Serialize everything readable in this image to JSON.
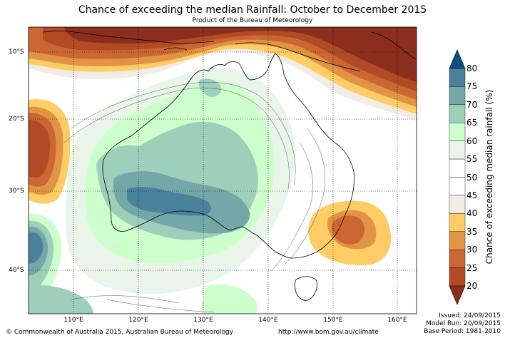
{
  "title": "Chance of exceeding the median Rainfall: October to December 2015",
  "subtitle": "Product of the Bureau of Meteorology",
  "lat_labels": [
    "10°S",
    "20°S",
    "30°S",
    "40°S"
  ],
  "lon_labels": [
    "110°E",
    "120°E",
    "130°E",
    "140°E",
    "150°E",
    "160°E"
  ],
  "colorbar": {
    "label": "Chance of exceeding median rainfall (%)",
    "ticks": [
      "80",
      "75",
      "70",
      "65",
      "60",
      "55",
      "50",
      "45",
      "40",
      "35",
      "30",
      "25",
      "20"
    ],
    "colors": {
      "over80": "#0f4e86",
      "75_80": "#4a829c",
      "70_75": "#74a7a8",
      "65_70": "#9dcfba",
      "60_65": "#ccffcc",
      "55_60": "#e8f5e8",
      "45_55": "#ffffff",
      "40_45": "#f1ece6",
      "35_40": "#ffcc66",
      "30_35": "#e09444",
      "25_30": "#cc6633",
      "20_25": "#b04b25",
      "under20": "#8b2e1e"
    }
  },
  "footer": {
    "copyright": "© Commonwealth of Australia 2015, Australian Bureau of Meteorology",
    "url": "http://www.bom.gov.au/climate",
    "issued": "Issued: 24/09/2015",
    "model_run": "Model Run: 20/09/2015",
    "base_period": "Base Period: 1981-2010"
  }
}
